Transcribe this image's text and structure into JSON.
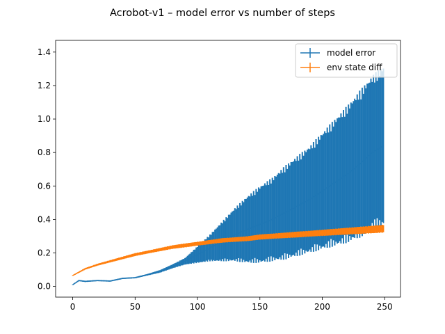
{
  "chart_data": {
    "type": "line",
    "title": "Acrobot-v1 – model error vs number of steps",
    "xlabel": "",
    "ylabel": "",
    "xlim": [
      -13.7,
      262.7
    ],
    "ylim": [
      -0.064,
      1.47
    ],
    "xticks": [
      0,
      50,
      100,
      150,
      200,
      250
    ],
    "yticks": [
      0.0,
      0.2,
      0.4,
      0.6,
      0.8,
      1.0,
      1.2,
      1.4
    ],
    "xtick_labels": [
      "0",
      "50",
      "100",
      "150",
      "200",
      "250"
    ],
    "ytick_labels": [
      "0.0",
      "0.2",
      "0.4",
      "0.6",
      "0.8",
      "1.0",
      "1.2",
      "1.4"
    ],
    "legend_position": "upper right",
    "grid": false,
    "error_bars": true,
    "series": [
      {
        "name": "model error",
        "color": "#1f77b4",
        "x": [
          0,
          5,
          10,
          20,
          30,
          40,
          50,
          60,
          70,
          80,
          90,
          100,
          110,
          120,
          130,
          140,
          150,
          160,
          170,
          180,
          190,
          200,
          210,
          220,
          230,
          240,
          249
        ],
        "y": [
          0.01,
          0.035,
          0.03,
          0.035,
          0.032,
          0.048,
          0.052,
          0.07,
          0.09,
          0.12,
          0.15,
          0.19,
          0.23,
          0.27,
          0.31,
          0.34,
          0.37,
          0.4,
          0.44,
          0.48,
          0.52,
          0.57,
          0.62,
          0.67,
          0.73,
          0.8,
          0.84
        ],
        "yerr": [
          0.002,
          0.004,
          0.004,
          0.004,
          0.004,
          0.004,
          0.004,
          0.005,
          0.008,
          0.012,
          0.02,
          0.05,
          0.08,
          0.12,
          0.16,
          0.2,
          0.23,
          0.25,
          0.28,
          0.3,
          0.32,
          0.35,
          0.38,
          0.41,
          0.44,
          0.46,
          0.48
        ]
      },
      {
        "name": "env state diff",
        "color": "#ff7f0e",
        "x": [
          0,
          5,
          10,
          20,
          30,
          40,
          50,
          60,
          70,
          80,
          90,
          100,
          110,
          120,
          130,
          140,
          150,
          160,
          170,
          180,
          190,
          200,
          210,
          220,
          230,
          240,
          249
        ],
        "y": [
          0.065,
          0.085,
          0.105,
          0.13,
          0.15,
          0.17,
          0.19,
          0.205,
          0.22,
          0.235,
          0.245,
          0.255,
          0.265,
          0.275,
          0.28,
          0.285,
          0.295,
          0.3,
          0.305,
          0.31,
          0.315,
          0.32,
          0.325,
          0.33,
          0.335,
          0.34,
          0.345
        ],
        "yerr": [
          0.002,
          0.004,
          0.005,
          0.006,
          0.007,
          0.008,
          0.009,
          0.009,
          0.01,
          0.011,
          0.012,
          0.012,
          0.013,
          0.014,
          0.014,
          0.015,
          0.016,
          0.016,
          0.017,
          0.018,
          0.018,
          0.019,
          0.02,
          0.021,
          0.022,
          0.023,
          0.024
        ]
      }
    ]
  }
}
